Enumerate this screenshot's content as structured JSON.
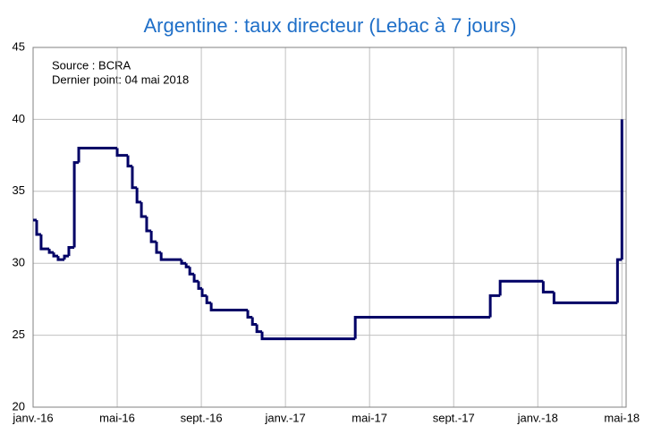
{
  "chart_data": {
    "type": "step",
    "title": "Argentine : taux directeur (Lebac à 7 jours)",
    "annotations": [
      "Source : BCRA",
      "Dernier point: 04 mai 2018"
    ],
    "x": [
      0,
      0.17,
      0.38,
      0.77,
      0.98,
      1.19,
      1.49,
      1.7,
      1.96,
      2.17,
      4.0,
      4.51,
      4.72,
      4.94,
      5.15,
      5.4,
      5.62,
      5.87,
      6.09,
      7.06,
      7.28,
      7.45,
      7.66,
      7.87,
      8.04,
      8.26,
      8.47,
      10.21,
      10.43,
      10.64,
      10.89,
      15.32,
      21.74,
      22.21,
      24.26,
      24.77,
      27.79,
      28.0
    ],
    "values": [
      33,
      32,
      31,
      30.75,
      30.5,
      30.25,
      30.5,
      31.1,
      37,
      38,
      37.5,
      36.75,
      35.25,
      34.25,
      33.25,
      32.25,
      31.5,
      30.75,
      30.25,
      30,
      29.75,
      29.25,
      28.75,
      28.25,
      27.75,
      27.25,
      26.75,
      26.25,
      25.75,
      25.25,
      24.75,
      26.25,
      27.75,
      28.75,
      28,
      27.25,
      30.25,
      40
    ],
    "color": "#000066",
    "xlim": [
      0,
      28.2
    ],
    "xticks": [
      {
        "value": 0,
        "label": "janv.-16"
      },
      {
        "value": 4,
        "label": "mai-16"
      },
      {
        "value": 8,
        "label": "sept.-16"
      },
      {
        "value": 12,
        "label": "janv.-17"
      },
      {
        "value": 16,
        "label": "mai-17"
      },
      {
        "value": 20,
        "label": "sept.-17"
      },
      {
        "value": 24,
        "label": "janv.-18"
      },
      {
        "value": 28,
        "label": "mai-18"
      }
    ],
    "ylim": [
      20,
      45
    ],
    "yticks": [
      20,
      25,
      30,
      35,
      40,
      45
    ],
    "grid": true
  }
}
